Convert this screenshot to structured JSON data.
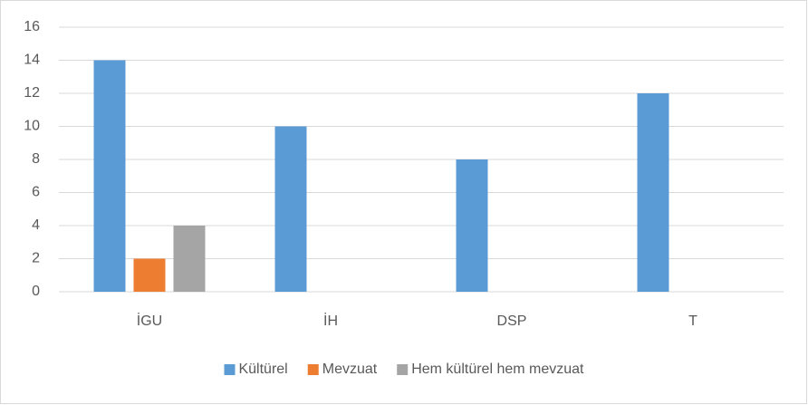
{
  "chart_data": {
    "type": "bar",
    "categories": [
      "İGU",
      "İH",
      "DSP",
      "T"
    ],
    "series": [
      {
        "name": "Kültürel",
        "color": "#5b9bd5",
        "values": [
          14,
          10,
          8,
          12
        ]
      },
      {
        "name": "Mevzuat",
        "color": "#ed7d31",
        "values": [
          2,
          0,
          0,
          0
        ]
      },
      {
        "name": "Hem kültürel hem mevzuat",
        "color": "#a5a5a5",
        "values": [
          4,
          0,
          0,
          0
        ]
      }
    ],
    "ylim": [
      0,
      16
    ],
    "yticks": [
      0,
      2,
      4,
      6,
      8,
      10,
      12,
      14,
      16
    ],
    "grid": true,
    "legend": "bottom"
  }
}
